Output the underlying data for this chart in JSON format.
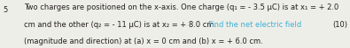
{
  "line1": "Two charges are positioned on the x-axis. One charge (q₁ = - 3.5 μC) is at x₁ = + 2.0",
  "line2_black": "cm and the other (q₂ = - 11 μC) is at x₂ = + 8.0 cm. ",
  "line2_cyan": "Find the net electric field",
  "line3": "(magnitude and direction) at (a) x = 0 cm and (b) x = + 6.0 cm.",
  "number": "5",
  "marks": "(10)",
  "text_color": "#231f20",
  "highlight_color": "#3db0d8",
  "bg_color": "#eeeee8",
  "font_size": 6.0
}
